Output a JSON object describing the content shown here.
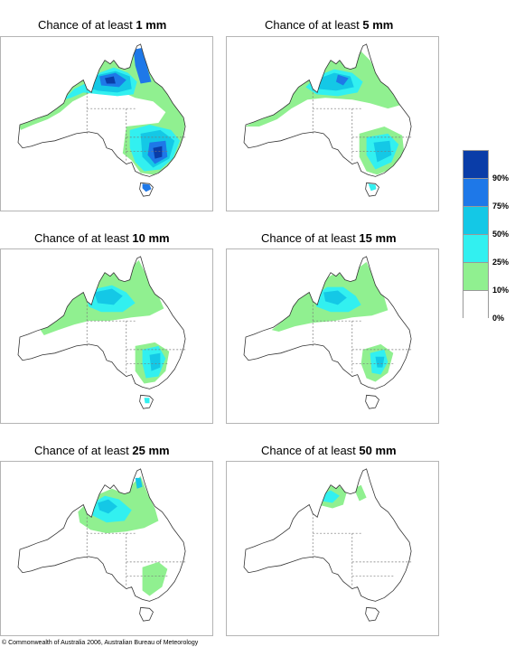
{
  "panels": [
    {
      "prefix": "Chance of at least ",
      "amount": "1 mm"
    },
    {
      "prefix": "Chance of at least ",
      "amount": "5 mm"
    },
    {
      "prefix": "Chance of at least ",
      "amount": "10 mm"
    },
    {
      "prefix": "Chance of at least ",
      "amount": "15 mm"
    },
    {
      "prefix": "Chance of at least ",
      "amount": "25 mm"
    },
    {
      "prefix": "Chance of at least ",
      "amount": "50 mm"
    }
  ],
  "legend": {
    "colors": [
      "#0a3da8",
      "#1e78e8",
      "#14c8e6",
      "#32f0f0",
      "#90f090",
      "#ffffff"
    ],
    "labels": [
      "90%",
      "75%",
      "50%",
      "25%",
      "10%",
      "0%"
    ]
  },
  "copyright": "© Commonwealth of Australia 2006, Australian Bureau of Meteorology"
}
